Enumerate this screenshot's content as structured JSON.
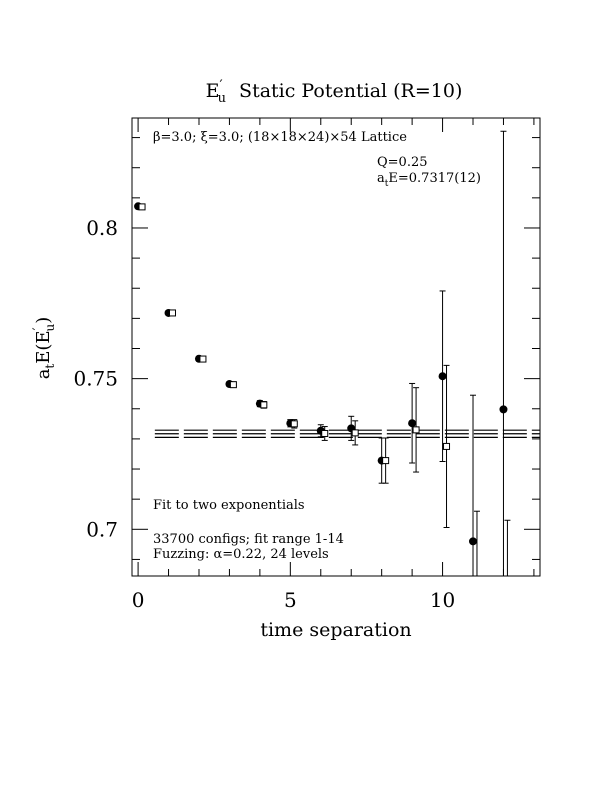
{
  "chart_data": {
    "type": "scatter",
    "title_main": "E",
    "title_sup": "′",
    "title_sub": "u",
    "title_rest": "Static Potential (R=10)",
    "xlabel": "time separation",
    "ylabel_main": "a",
    "ylabel_sub1": "t",
    "ylabel_mid": "E(E",
    "ylabel_sup": "′",
    "ylabel_sub2": "u",
    "ylabel_end": ")",
    "xlim": [
      -0.2,
      13.2
    ],
    "ylim": [
      0.6845,
      0.8365
    ],
    "x_ticks": [
      0,
      5,
      10
    ],
    "x_tick_labels": [
      "0",
      "5",
      "10"
    ],
    "x_minor_step": 1,
    "y_ticks": [
      0.7,
      0.75,
      0.8
    ],
    "y_tick_labels": [
      "0.7",
      "0.75",
      "0.8"
    ],
    "y_minor_step": 0.01,
    "grid": false,
    "annotations": {
      "lattice": "β=3.0; ξ=3.0; (18×18×24)×54 Lattice",
      "q": "Q=0.25",
      "energy_main": "a",
      "energy_sub": "t",
      "energy_rest": "E=0.7317(12)",
      "fit": "Fit to two exponentials",
      "configs": "33700 configs; fit range 1-14",
      "fuzzing": "Fuzzing: α=0.22, 24 levels"
    },
    "fit_band": {
      "center": 0.7317,
      "lower": 0.7305,
      "upper": 0.7329
    },
    "series": [
      {
        "marker": "filled-circle",
        "points": [
          {
            "x": 0,
            "y": 0.8072,
            "err": 0.0005
          },
          {
            "x": 1,
            "y": 0.7718,
            "err": 0.0006
          },
          {
            "x": 2,
            "y": 0.7566,
            "err": 0.0007
          },
          {
            "x": 3,
            "y": 0.7482,
            "err": 0.0008
          },
          {
            "x": 4,
            "y": 0.7417,
            "err": 0.001
          },
          {
            "x": 5,
            "y": 0.7352,
            "err": 0.0012
          },
          {
            "x": 6,
            "y": 0.7327,
            "err": 0.002
          },
          {
            "x": 7,
            "y": 0.7335,
            "err": 0.004
          },
          {
            "x": 8,
            "y": 0.7228,
            "err": 0.0075
          },
          {
            "x": 9,
            "y": 0.7352,
            "err": 0.0132
          },
          {
            "x": 10,
            "y": 0.7508,
            "err": 0.0283
          },
          {
            "x": 11,
            "y": 0.696,
            "err": 0.0485
          },
          {
            "x": 12,
            "y": 0.7398,
            "err": 0.0923
          }
        ]
      },
      {
        "marker": "open-square",
        "points": [
          {
            "x": 0,
            "y": 0.807,
            "err": 0.0006
          },
          {
            "x": 1,
            "y": 0.7718,
            "err": 0.0007
          },
          {
            "x": 2,
            "y": 0.7565,
            "err": 0.0008
          },
          {
            "x": 3,
            "y": 0.748,
            "err": 0.0009
          },
          {
            "x": 4,
            "y": 0.7413,
            "err": 0.0011
          },
          {
            "x": 5,
            "y": 0.735,
            "err": 0.0014
          },
          {
            "x": 6,
            "y": 0.7318,
            "err": 0.0023
          },
          {
            "x": 7,
            "y": 0.732,
            "err": 0.004
          },
          {
            "x": 8,
            "y": 0.7228,
            "err": 0.0075
          },
          {
            "x": 9,
            "y": 0.733,
            "err": 0.014
          },
          {
            "x": 10,
            "y": 0.7275,
            "err": 0.0269
          },
          {
            "x": 11,
            "y": 0.684,
            "err": 0.022
          },
          {
            "x": 12,
            "y": 0.684,
            "err": 0.019
          }
        ]
      }
    ]
  }
}
